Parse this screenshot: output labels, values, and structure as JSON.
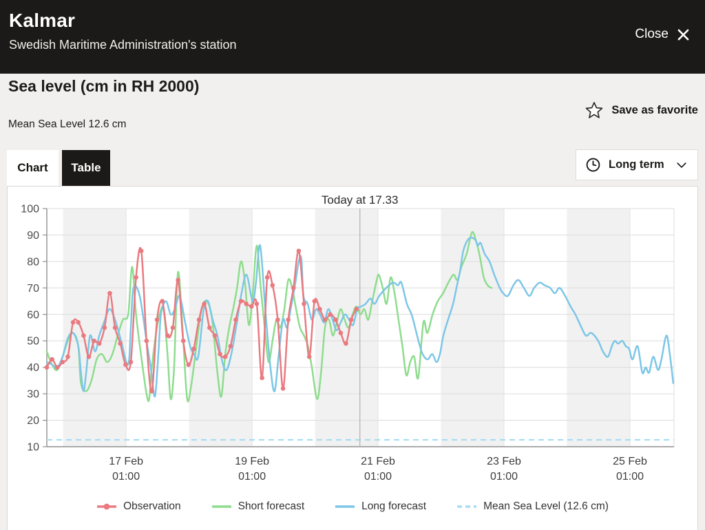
{
  "header": {
    "title": "Kalmar",
    "subtitle": "Swedish Maritime Administration's station",
    "close_label": "Close"
  },
  "section": {
    "title": "Sea level (cm in RH 2000)",
    "subtitle": "Mean Sea Level 12.6 cm",
    "favorite_label": "Save as favorite"
  },
  "tabs": [
    {
      "label": "Chart",
      "active": true
    },
    {
      "label": "Table",
      "active": false
    }
  ],
  "range_select": {
    "value": "Long term"
  },
  "chart_data": {
    "type": "line",
    "title": "Today at 17.33",
    "ylabel": "",
    "xlabel": "",
    "ylim": [
      10,
      100
    ],
    "yticks": [
      10,
      20,
      30,
      40,
      50,
      60,
      70,
      80,
      90,
      100
    ],
    "t_domain": [
      0,
      239
    ],
    "xticks": [
      {
        "t": 30.2,
        "label": "17 Feb",
        "time": "01:00"
      },
      {
        "t": 78.2,
        "label": "19 Feb",
        "time": "01:00"
      },
      {
        "t": 126.2,
        "label": "21 Feb",
        "time": "01:00"
      },
      {
        "t": 174.2,
        "label": "23 Feb",
        "time": "01:00"
      },
      {
        "t": 222.2,
        "label": "25 Feb",
        "time": "01:00"
      }
    ],
    "day_bands": [
      [
        6.2,
        30.2
      ],
      [
        54.2,
        78.2
      ],
      [
        102.2,
        126.2
      ],
      [
        150.2,
        174.2
      ],
      [
        198.2,
        222.2
      ]
    ],
    "today": {
      "t": 119.3,
      "label": "Today at 17.33"
    },
    "mean_sea_level": 12.6,
    "grid": true,
    "legend_position": "bottom",
    "colors": {
      "band": "#f1f1f1",
      "grid": "#dcdcdc",
      "axis": "#8f8f8f",
      "today_line": "#b8b8b8"
    },
    "series": [
      {
        "name": "Observation",
        "color": "#e97a80",
        "marker": "dot",
        "start": 0,
        "step": 2,
        "values": [
          40,
          43,
          40,
          42,
          44,
          57,
          57,
          52,
          44,
          50,
          49,
          55,
          68,
          55,
          49,
          41,
          42,
          74,
          84,
          50,
          31,
          58,
          65,
          52,
          55,
          73,
          50,
          41,
          47,
          58,
          64,
          55,
          52,
          45,
          44,
          48,
          58,
          65,
          64,
          63,
          64,
          36,
          74,
          71,
          58,
          32,
          58,
          70,
          84,
          64,
          44,
          65,
          62,
          58,
          60,
          58,
          53,
          49,
          58,
          62
        ]
      },
      {
        "name": "Short forecast",
        "color": "#8edc8e",
        "points": [
          [
            0,
            46
          ],
          [
            2,
            41
          ],
          [
            4,
            39
          ],
          [
            6,
            44
          ],
          [
            8,
            50
          ],
          [
            10,
            53
          ],
          [
            12,
            48
          ],
          [
            13,
            34
          ],
          [
            15,
            31
          ],
          [
            17,
            35
          ],
          [
            19,
            43
          ],
          [
            21,
            45
          ],
          [
            23,
            42
          ],
          [
            25,
            45
          ],
          [
            27,
            52
          ],
          [
            29,
            58
          ],
          [
            31,
            60
          ],
          [
            32.5,
            78
          ],
          [
            34,
            60
          ],
          [
            36,
            44
          ],
          [
            38,
            30
          ],
          [
            39,
            28
          ],
          [
            40,
            40
          ],
          [
            41.5,
            52
          ],
          [
            43,
            60
          ],
          [
            44.5,
            62
          ],
          [
            46,
            45
          ],
          [
            47.2,
            28
          ],
          [
            48.5,
            40
          ],
          [
            50,
            76
          ],
          [
            52,
            50
          ],
          [
            53.5,
            28
          ],
          [
            55,
            33
          ],
          [
            57,
            48
          ],
          [
            59,
            62
          ],
          [
            61,
            65
          ],
          [
            63,
            58
          ],
          [
            65,
            38
          ],
          [
            66.5,
            29
          ],
          [
            68,
            45
          ],
          [
            69.5,
            55
          ],
          [
            71,
            62
          ],
          [
            72.5,
            70
          ],
          [
            74,
            80
          ],
          [
            75.5,
            72
          ],
          [
            77,
            56
          ],
          [
            78.5,
            68
          ],
          [
            80,
            86
          ],
          [
            81.5,
            70
          ],
          [
            83,
            55
          ],
          [
            84.5,
            42
          ],
          [
            86,
            50
          ],
          [
            87.5,
            58
          ],
          [
            89,
            55
          ],
          [
            90.5,
            62
          ],
          [
            92,
            73
          ],
          [
            93.5,
            70
          ],
          [
            95,
            62
          ],
          [
            96.5,
            55
          ],
          [
            98,
            52
          ],
          [
            99.5,
            48
          ],
          [
            101,
            40
          ],
          [
            103,
            28
          ],
          [
            104.5,
            38
          ],
          [
            106,
            55
          ],
          [
            107.5,
            58
          ],
          [
            109,
            52
          ],
          [
            110.5,
            57
          ],
          [
            112,
            62
          ],
          [
            113.5,
            58
          ],
          [
            115,
            55
          ],
          [
            116.5,
            60
          ],
          [
            118,
            63
          ],
          [
            119.5,
            60
          ],
          [
            121,
            62
          ],
          [
            122.5,
            58
          ],
          [
            124,
            65
          ],
          [
            125.5,
            72
          ],
          [
            126.5,
            75
          ],
          [
            128,
            70
          ],
          [
            129.5,
            64
          ],
          [
            131,
            74
          ],
          [
            132.5,
            68
          ],
          [
            134,
            58
          ],
          [
            135.5,
            48
          ],
          [
            137,
            37
          ],
          [
            138.5,
            42
          ],
          [
            140,
            44
          ],
          [
            141.5,
            36
          ],
          [
            143.5,
            57
          ],
          [
            145,
            53
          ],
          [
            147,
            60
          ],
          [
            149,
            65
          ],
          [
            151,
            68
          ],
          [
            153,
            72
          ],
          [
            155,
            75
          ],
          [
            156.5,
            73
          ],
          [
            158,
            78
          ],
          [
            160,
            83
          ],
          [
            162,
            91
          ],
          [
            163.5,
            88
          ],
          [
            165,
            82
          ],
          [
            166.5,
            74
          ],
          [
            168,
            71
          ],
          [
            169.5,
            70
          ]
        ]
      },
      {
        "name": "Long forecast",
        "color": "#7cc6e6",
        "points": [
          [
            0,
            42
          ],
          [
            2,
            41
          ],
          [
            4,
            40
          ],
          [
            6,
            44
          ],
          [
            8,
            51
          ],
          [
            10,
            53
          ],
          [
            12,
            48
          ],
          [
            13,
            38
          ],
          [
            14,
            31
          ],
          [
            15,
            38
          ],
          [
            16.5,
            52
          ],
          [
            18.4,
            46
          ],
          [
            20,
            52
          ],
          [
            21.8,
            57
          ],
          [
            23.9,
            62
          ],
          [
            26,
            58
          ],
          [
            28.3,
            50
          ],
          [
            31,
            41
          ],
          [
            32,
            55
          ],
          [
            33,
            70
          ],
          [
            35.4,
            67
          ],
          [
            38,
            50
          ],
          [
            39.6,
            40
          ],
          [
            41.2,
            29
          ],
          [
            42.5,
            45
          ],
          [
            43.5,
            60
          ],
          [
            45.4,
            65
          ],
          [
            47.2,
            60
          ],
          [
            48.8,
            62
          ],
          [
            50.6,
            67
          ],
          [
            52.7,
            57
          ],
          [
            54.6,
            48
          ],
          [
            56.1,
            45
          ],
          [
            57.7,
            44
          ],
          [
            59.8,
            62
          ],
          [
            61.4,
            65
          ],
          [
            63.2,
            58
          ],
          [
            65,
            52
          ],
          [
            66.9,
            42
          ],
          [
            68.5,
            39
          ],
          [
            70.3,
            45
          ],
          [
            72.1,
            55
          ],
          [
            74.2,
            68
          ],
          [
            76.1,
            75
          ],
          [
            78.4,
            65
          ],
          [
            79.7,
            72
          ],
          [
            81.3,
            86
          ],
          [
            83.4,
            60
          ],
          [
            85.2,
            40
          ],
          [
            86.8,
            31
          ],
          [
            88.4,
            45
          ],
          [
            90,
            58
          ],
          [
            91.5,
            55
          ],
          [
            92.9,
            62
          ],
          [
            94.4,
            70
          ],
          [
            96,
            80
          ],
          [
            97,
            81
          ],
          [
            97.8,
            67
          ],
          [
            99.4,
            64
          ],
          [
            101,
            58
          ],
          [
            102.6,
            62
          ],
          [
            104.1,
            60
          ],
          [
            105.7,
            57
          ],
          [
            107.3,
            62
          ],
          [
            108.9,
            58
          ],
          [
            110.4,
            54
          ],
          [
            112,
            57
          ],
          [
            113.6,
            60
          ],
          [
            115.2,
            58
          ],
          [
            116.7,
            56
          ],
          [
            118.3,
            62
          ],
          [
            119.9,
            63
          ],
          [
            121.5,
            64
          ],
          [
            123.3,
            66
          ],
          [
            124.9,
            64
          ],
          [
            126.7,
            67
          ],
          [
            129.3,
            70
          ],
          [
            131.9,
            72
          ],
          [
            133.8,
            71
          ],
          [
            135.1,
            72
          ],
          [
            137.2,
            64
          ],
          [
            139,
            60
          ],
          [
            140.6,
            54
          ],
          [
            141.9,
            49
          ],
          [
            143.2,
            45
          ],
          [
            145.1,
            43
          ],
          [
            146.9,
            45
          ],
          [
            148.5,
            42
          ],
          [
            149.8,
            45
          ],
          [
            151.1,
            52
          ],
          [
            152.9,
            58
          ],
          [
            154.8,
            64
          ],
          [
            156.3,
            71
          ],
          [
            157.4,
            76
          ],
          [
            158.7,
            84
          ],
          [
            160.3,
            88
          ],
          [
            161.8,
            89
          ],
          [
            163.4,
            88
          ],
          [
            164.2,
            86
          ],
          [
            165.3,
            87
          ],
          [
            166.8,
            83
          ],
          [
            168.7,
            80
          ],
          [
            170.5,
            75
          ],
          [
            172.6,
            70
          ],
          [
            173.9,
            68
          ],
          [
            175.7,
            67
          ],
          [
            177.8,
            71
          ],
          [
            179.7,
            73
          ],
          [
            181.8,
            70
          ],
          [
            183.9,
            67
          ],
          [
            185.7,
            70
          ],
          [
            187.8,
            72
          ],
          [
            189.7,
            71
          ],
          [
            191.8,
            70
          ],
          [
            193.6,
            68
          ],
          [
            195.4,
            70
          ],
          [
            197.5,
            67
          ],
          [
            199.6,
            63
          ],
          [
            201.4,
            60
          ],
          [
            203.3,
            56
          ],
          [
            205.4,
            52
          ],
          [
            207.5,
            53
          ],
          [
            210.1,
            50
          ],
          [
            211.9,
            46
          ],
          [
            213.8,
            44
          ],
          [
            215.3,
            48
          ],
          [
            216.4,
            50
          ],
          [
            217.7,
            49
          ],
          [
            219.3,
            50
          ],
          [
            220.6,
            48
          ],
          [
            221.9,
            47
          ],
          [
            223.2,
            43
          ],
          [
            225.1,
            48
          ],
          [
            226.9,
            38
          ],
          [
            228.2,
            40
          ],
          [
            229.5,
            38
          ],
          [
            231.1,
            44
          ],
          [
            232.9,
            39
          ],
          [
            234.2,
            43
          ],
          [
            236.1,
            52
          ],
          [
            237.4,
            45
          ],
          [
            238.7,
            34
          ]
        ]
      },
      {
        "name": "Mean Sea Level (12.6 cm)",
        "color": "#a7ddf3",
        "style": "dashed",
        "value": 12.6
      }
    ]
  }
}
